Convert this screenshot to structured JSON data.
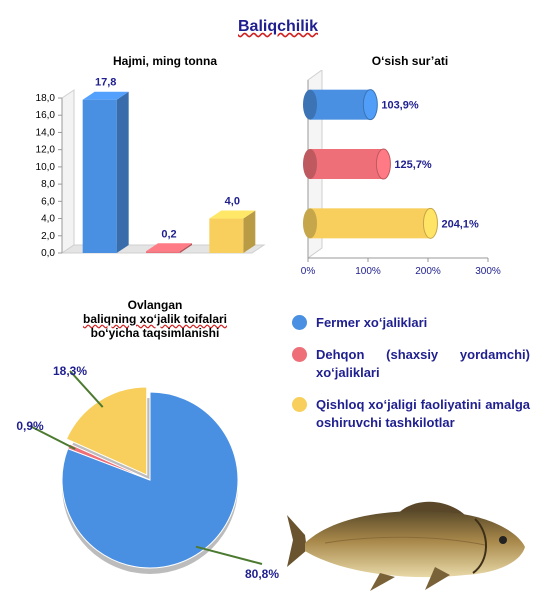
{
  "page_title": "Baliqchilik",
  "colors": {
    "blue": "#4a90e2",
    "red": "#ee6f78",
    "yellow": "#f8cf5c",
    "title_blue": "#1f1f8f",
    "label_blue": "#1f1f8f"
  },
  "chart_data": [
    {
      "type": "bar",
      "title": "Hajmi, ming tonna",
      "categories": [
        "",
        "",
        ""
      ],
      "values": [
        17.8,
        0.2,
        4.0
      ],
      "value_labels": [
        "17,8",
        "0,2",
        "4,0"
      ],
      "colors": [
        "#4a90e2",
        "#ee6f78",
        "#f8cf5c"
      ],
      "ylim": [
        0,
        18
      ],
      "yticks": [
        "0,0",
        "2,0",
        "4,0",
        "6,0",
        "8,0",
        "10,0",
        "12,0",
        "14,0",
        "16,0",
        "18,0"
      ],
      "grid": false
    },
    {
      "type": "bar",
      "orientation": "horizontal",
      "title": "O‘sish sur’ati",
      "values": [
        103.9,
        125.7,
        204.1
      ],
      "value_labels": [
        "103,9%",
        "125,7%",
        "204,1%"
      ],
      "colors": [
        "#4a90e2",
        "#ee6f78",
        "#f8cf5c"
      ],
      "xlim": [
        0,
        300
      ],
      "xticks": [
        "0%",
        "100%",
        "200%",
        "300%"
      ],
      "grid": false
    },
    {
      "type": "pie",
      "title": "Ovlangan baliqning xo‘jalik toifalari bo‘yicha taqsimlanishi",
      "title_lines": [
        "Ovlangan",
        "baliqning xo‘jalik toifalari",
        "bo‘yicha taqsimlanishi"
      ],
      "values": [
        80.8,
        0.9,
        18.3
      ],
      "value_labels": [
        "80,8%",
        "0,9%",
        "18,3%"
      ],
      "colors": [
        "#4a90e2",
        "#ee6f78",
        "#f8cf5c"
      ]
    }
  ],
  "legend": [
    {
      "label": "Fermer xo‘jaliklari",
      "color": "#4a90e2"
    },
    {
      "label": "Dehqon (shaxsiy yordamchi) xo‘jaliklari",
      "color": "#ee6f78"
    },
    {
      "label": "Qishloq xo‘jaligi faoliyatini amalga oshiruvchi tashkilotlar",
      "color": "#f8cf5c"
    }
  ],
  "image": {
    "name": "fish-picture"
  }
}
